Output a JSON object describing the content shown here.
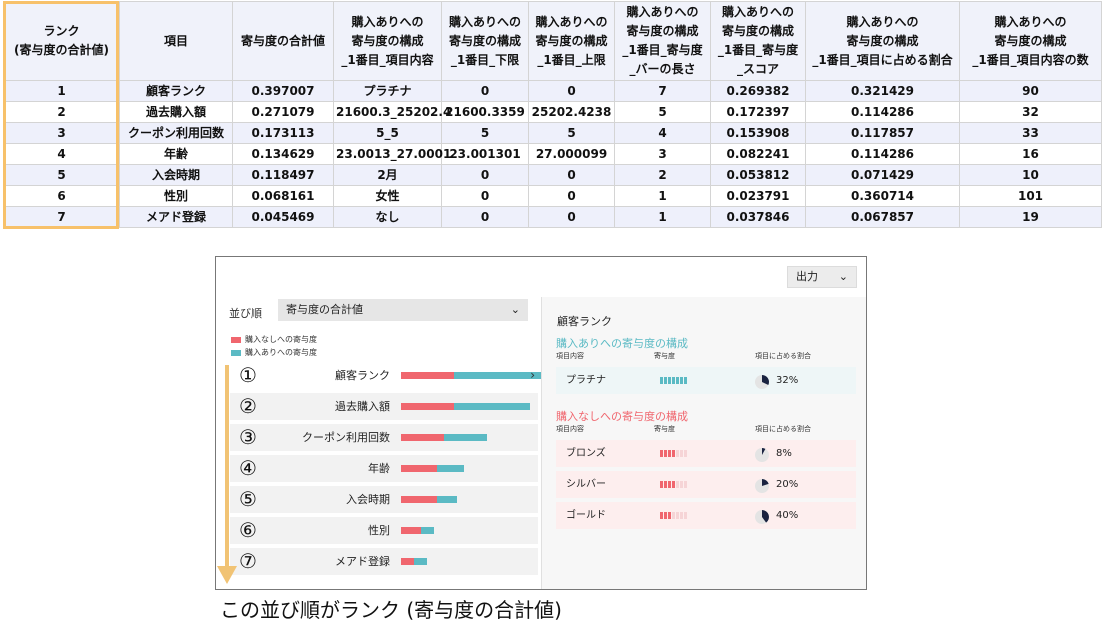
{
  "table": {
    "headers": [
      "ランク\n(寄与度の合計値)",
      "項目",
      "寄与度の合計値",
      "購入ありへの\n寄与度の構成\n_1番目_項目内容",
      "購入ありへの\n寄与度の構成\n_1番目_下限",
      "購入ありへの\n寄与度の構成\n_1番目_上限",
      "購入ありへの\n寄与度の構成\n_1番目_寄与度\n_バーの長さ",
      "購入ありへの\n寄与度の構成\n_1番目_寄与度\n_スコア",
      "購入ありへの\n寄与度の構成\n_1番目_項目に占める割合",
      "購入ありへの\n寄与度の構成\n_1番目_項目内容の数"
    ],
    "rows": [
      [
        "1",
        "顧客ランク",
        "0.397007",
        "プラチナ",
        "0",
        "0",
        "7",
        "0.269382",
        "0.321429",
        "90"
      ],
      [
        "2",
        "過去購入額",
        "0.271079",
        "21600.3_25202.4",
        "21600.3359",
        "25202.4238",
        "5",
        "0.172397",
        "0.114286",
        "32"
      ],
      [
        "3",
        "クーポン利用回数",
        "0.173113",
        "5_5",
        "5",
        "5",
        "4",
        "0.153908",
        "0.117857",
        "33"
      ],
      [
        "4",
        "年齢",
        "0.134629",
        "23.0013_27.0001",
        "23.001301",
        "27.000099",
        "3",
        "0.082241",
        "0.114286",
        "16"
      ],
      [
        "5",
        "入会時期",
        "0.118497",
        "2月",
        "0",
        "0",
        "2",
        "0.053812",
        "0.071429",
        "10"
      ],
      [
        "6",
        "性別",
        "0.068161",
        "女性",
        "0",
        "0",
        "1",
        "0.023791",
        "0.360714",
        "101"
      ],
      [
        "7",
        "メアド登録",
        "0.045469",
        "なし",
        "0",
        "0",
        "1",
        "0.037846",
        "0.067857",
        "19"
      ]
    ]
  },
  "app": {
    "export_label": "出力",
    "chevron": "⌄",
    "sort_label": "並び順",
    "sort_value": "寄与度の合計値",
    "legend": {
      "neg_label": "購入なしへの寄与度",
      "pos_label": "購入ありへの寄与度",
      "neg_color": "#f0666e",
      "pos_color": "#5bbac4"
    },
    "rank_items": [
      {
        "num": "①",
        "name": "顧客ランク",
        "neg": 0.16,
        "pos": 0.4,
        "selected": true
      },
      {
        "num": "②",
        "name": "過去購入額",
        "neg": 0.16,
        "pos": 0.23
      },
      {
        "num": "③",
        "name": "クーポン利用回数",
        "neg": 0.13,
        "pos": 0.13
      },
      {
        "num": "④",
        "name": "年齢",
        "neg": 0.11,
        "pos": 0.08
      },
      {
        "num": "⑤",
        "name": "入会時期",
        "neg": 0.11,
        "pos": 0.06
      },
      {
        "num": "⑥",
        "name": "性別",
        "neg": 0.06,
        "pos": 0.04
      },
      {
        "num": "⑦",
        "name": "メアド登録",
        "neg": 0.04,
        "pos": 0.04
      }
    ],
    "selected_arrow": "›",
    "detail": {
      "title": "顧客ランク",
      "pos_section": {
        "title": "購入ありへの寄与度の構成",
        "col_value": "項目内容",
        "col_contrib": "寄与度",
        "col_ratio": "項目に占める割合",
        "rows": [
          {
            "value": "プラチナ",
            "level": 7,
            "max": 7,
            "ratio": 0.32,
            "ratio_label": "32%"
          }
        ]
      },
      "neg_section": {
        "title": "購入なしへの寄与度の構成",
        "col_value": "項目内容",
        "col_contrib": "寄与度",
        "col_ratio": "項目に占める割合",
        "rows": [
          {
            "value": "ブロンズ",
            "level": 4,
            "max": 7,
            "ratio": 0.08,
            "ratio_label": "8%"
          },
          {
            "value": "シルバー",
            "level": 4,
            "max": 7,
            "ratio": 0.2,
            "ratio_label": "20%"
          },
          {
            "value": "ゴールド",
            "level": 3,
            "max": 7,
            "ratio": 0.4,
            "ratio_label": "40%"
          }
        ]
      }
    }
  },
  "caption": "この並び順がランク (寄与度の合計値)"
}
